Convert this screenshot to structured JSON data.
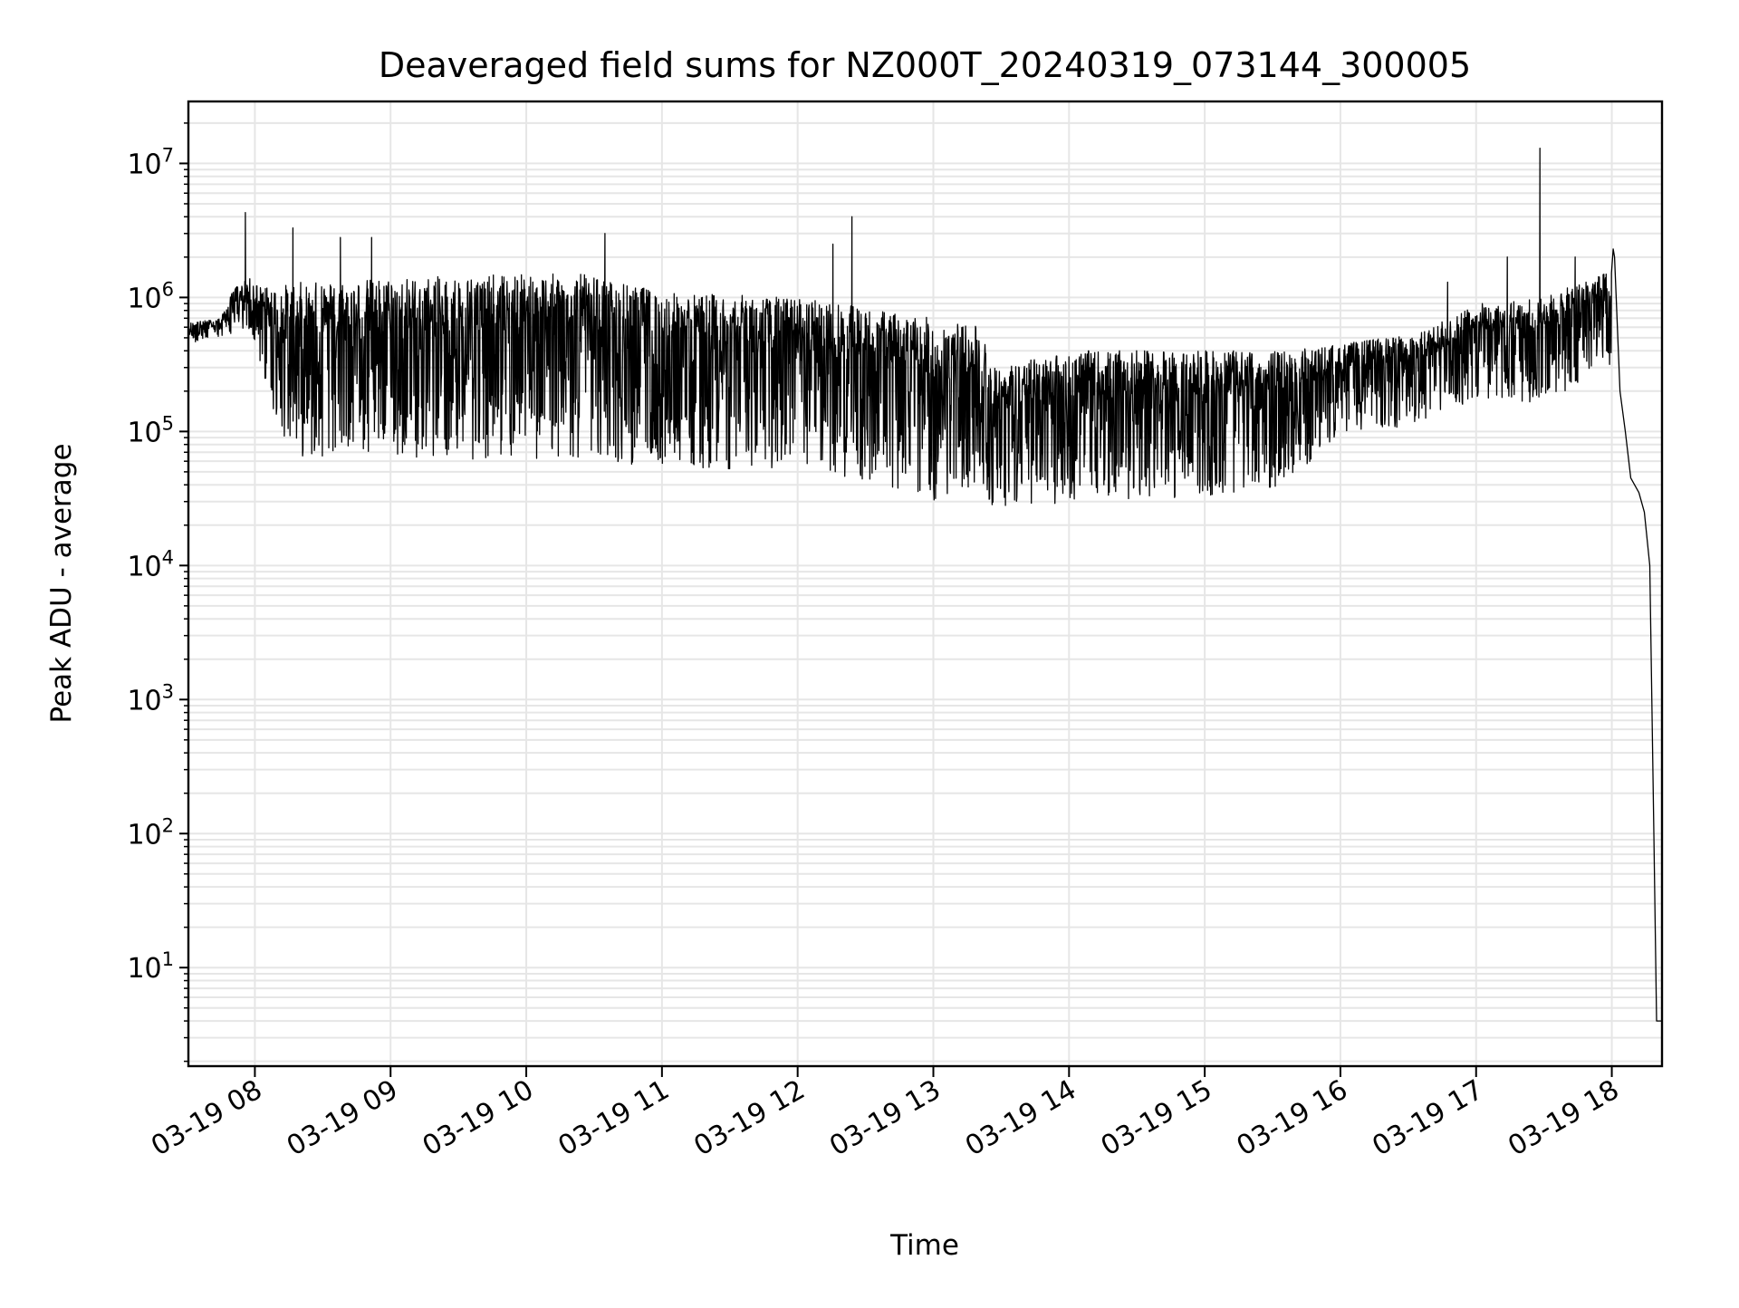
{
  "chart_data": {
    "type": "line",
    "title": "Deaveraged field sums for NZ000T_20240319_073144_300005",
    "xlabel": "Time",
    "ylabel": "Peak ADU - average",
    "yscale": "log",
    "ylim": [
      1.84,
      29000000
    ],
    "xlim_hours": [
      7.51,
      18.37
    ],
    "grid": true,
    "line_color": "#000000",
    "grid_color": "#e6e6e6",
    "x_ticks": [
      {
        "hour": 8,
        "label": "03-19 08"
      },
      {
        "hour": 9,
        "label": "03-19 09"
      },
      {
        "hour": 10,
        "label": "03-19 10"
      },
      {
        "hour": 11,
        "label": "03-19 11"
      },
      {
        "hour": 12,
        "label": "03-19 12"
      },
      {
        "hour": 13,
        "label": "03-19 13"
      },
      {
        "hour": 14,
        "label": "03-19 14"
      },
      {
        "hour": 15,
        "label": "03-19 15"
      },
      {
        "hour": 16,
        "label": "03-19 16"
      },
      {
        "hour": 17,
        "label": "03-19 17"
      },
      {
        "hour": 18,
        "label": "03-19 18"
      }
    ],
    "y_ticks": [
      {
        "exp": 1,
        "base": "10",
        "sup": "1"
      },
      {
        "exp": 2,
        "base": "10",
        "sup": "2"
      },
      {
        "exp": 3,
        "base": "10",
        "sup": "3"
      },
      {
        "exp": 4,
        "base": "10",
        "sup": "4"
      },
      {
        "exp": 5,
        "base": "10",
        "sup": "5"
      },
      {
        "exp": 6,
        "base": "10",
        "sup": "6"
      },
      {
        "exp": 7,
        "base": "10",
        "sup": "7"
      }
    ],
    "envelope": [
      {
        "t": 7.52,
        "hi": 650000,
        "lo": 450000
      },
      {
        "t": 7.75,
        "hi": 700000,
        "lo": 500000
      },
      {
        "t": 7.85,
        "hi": 1200000,
        "lo": 550000
      },
      {
        "t": 7.97,
        "hi": 1400000,
        "lo": 500000
      },
      {
        "t": 8.05,
        "hi": 1200000,
        "lo": 300000
      },
      {
        "t": 8.15,
        "hi": 1200000,
        "lo": 120000
      },
      {
        "t": 8.3,
        "hi": 1300000,
        "lo": 65000
      },
      {
        "t": 9.0,
        "hi": 1400000,
        "lo": 65000
      },
      {
        "t": 10.0,
        "hi": 1500000,
        "lo": 60000
      },
      {
        "t": 10.4,
        "hi": 1500000,
        "lo": 60000
      },
      {
        "t": 11.0,
        "hi": 1100000,
        "lo": 55000
      },
      {
        "t": 12.0,
        "hi": 1000000,
        "lo": 50000
      },
      {
        "t": 12.6,
        "hi": 800000,
        "lo": 40000
      },
      {
        "t": 13.0,
        "hi": 700000,
        "lo": 30000
      },
      {
        "t": 13.35,
        "hi": 600000,
        "lo": 40000
      },
      {
        "t": 13.45,
        "hi": 300000,
        "lo": 25000
      },
      {
        "t": 14.0,
        "hi": 400000,
        "lo": 30000
      },
      {
        "t": 15.0,
        "hi": 400000,
        "lo": 32000
      },
      {
        "t": 15.6,
        "hi": 400000,
        "lo": 38000
      },
      {
        "t": 16.0,
        "hi": 450000,
        "lo": 100000
      },
      {
        "t": 16.6,
        "hi": 550000,
        "lo": 110000
      },
      {
        "t": 17.0,
        "hi": 900000,
        "lo": 180000
      },
      {
        "t": 17.5,
        "hi": 1000000,
        "lo": 160000
      },
      {
        "t": 18.0,
        "hi": 1600000,
        "lo": 300000
      }
    ],
    "tail": [
      {
        "t": 18.02,
        "v": 2000000
      },
      {
        "t": 18.06,
        "v": 200000
      },
      {
        "t": 18.1,
        "v": 100000
      },
      {
        "t": 18.14,
        "v": 45000
      },
      {
        "t": 18.2,
        "v": 35000
      },
      {
        "t": 18.24,
        "v": 25000
      },
      {
        "t": 18.28,
        "v": 10000
      },
      {
        "t": 18.31,
        "v": 100
      },
      {
        "t": 18.33,
        "v": 4
      },
      {
        "t": 18.37,
        "v": 4
      }
    ],
    "spikes": [
      {
        "t": 7.93,
        "v": 4300000
      },
      {
        "t": 8.28,
        "v": 3300000
      },
      {
        "t": 8.63,
        "v": 2800000
      },
      {
        "t": 8.86,
        "v": 2800000
      },
      {
        "t": 10.58,
        "v": 3000000
      },
      {
        "t": 12.26,
        "v": 2500000
      },
      {
        "t": 12.4,
        "v": 4000000
      },
      {
        "t": 16.79,
        "v": 1300000
      },
      {
        "t": 17.23,
        "v": 2000000
      },
      {
        "t": 17.47,
        "v": 13000000
      },
      {
        "t": 17.73,
        "v": 2000000
      },
      {
        "t": 18.01,
        "v": 2300000
      }
    ]
  }
}
